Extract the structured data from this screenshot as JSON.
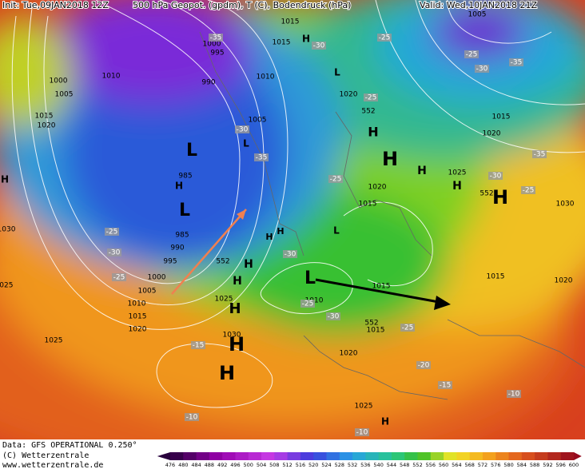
{
  "header": {
    "init": "Init: Tue,09JAN2018 12Z",
    "title": "500 hPa Geopot. (gpdm), T (C), Bodendruck (hPa)",
    "valid": "Valid: Wed,10JAN2018 21Z"
  },
  "footer": {
    "data": "Data: GFS OPERATIONAL 0.250°",
    "copyright": "(C) Wetterzentrale",
    "url": "www.wetterzentrale.de"
  },
  "colorbar": {
    "levels": [
      476,
      480,
      484,
      488,
      492,
      496,
      500,
      504,
      508,
      512,
      516,
      520,
      524,
      528,
      532,
      536,
      540,
      544,
      548,
      552,
      556,
      560,
      564,
      568,
      572,
      576,
      580,
      584,
      588,
      592,
      596,
      600
    ]
  },
  "map": {
    "pressure_labels": [
      "1005",
      "1015",
      "1000",
      "995",
      "1015",
      "1010",
      "1000",
      "1005",
      "1010",
      "990",
      "1015",
      "1020",
      "1005",
      "1020",
      "1015",
      "1020",
      "985",
      "1025",
      "1020",
      "1015",
      "1030",
      "985",
      "990",
      "995",
      "1000",
      "1005",
      "1010",
      "1015",
      "1020",
      "1025",
      "1025",
      "1030",
      "1015",
      "1010",
      "1015",
      "1020",
      "1015",
      "1020",
      "1025",
      "1030",
      "1025"
    ],
    "temperature_labels": [
      "-35",
      "-30",
      "-25",
      "-25",
      "-30",
      "-35",
      "-30",
      "-35",
      "-25",
      "-25",
      "-30",
      "-25",
      "-35",
      "-25",
      "-30",
      "-25",
      "-30",
      "-30",
      "-25",
      "-20",
      "-15",
      "-10",
      "-15",
      "-10",
      "-10",
      "-25"
    ],
    "height_labels": [
      "552",
      "552",
      "552",
      "552"
    ],
    "centers": [
      "H",
      "L",
      "L",
      "L",
      "H",
      "L",
      "H",
      "L",
      "H",
      "H",
      "H",
      "H",
      "H",
      "H",
      "H",
      "H",
      "H",
      "H",
      "H",
      "L",
      "H",
      "H"
    ]
  }
}
